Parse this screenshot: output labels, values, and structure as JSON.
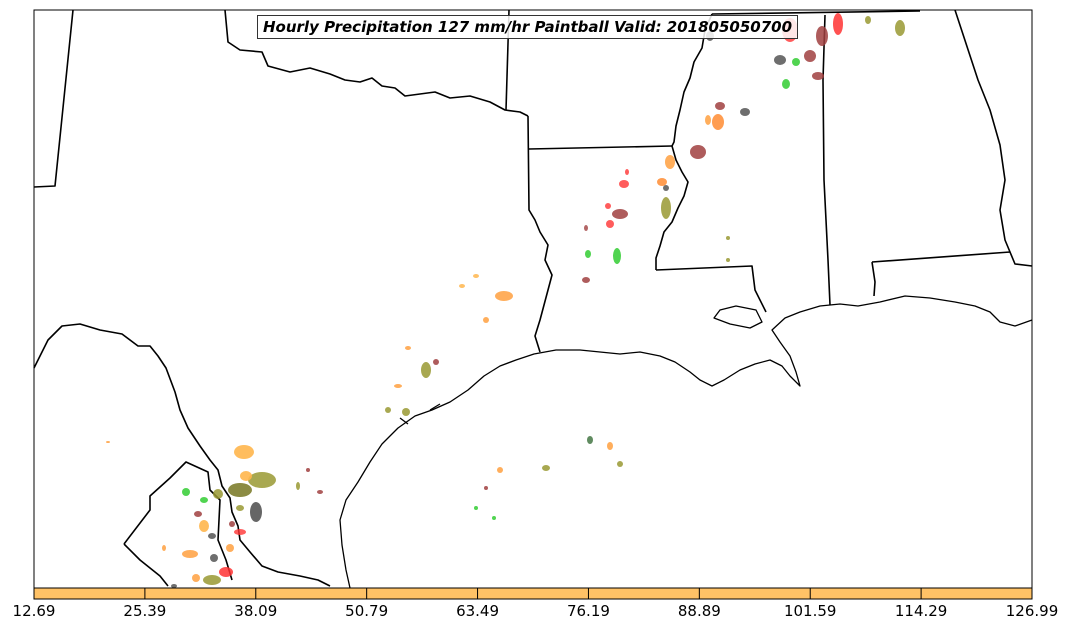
{
  "title": "Hourly Precipitation 127 mm/hr Paintball Valid: 201805050700",
  "colorbar": {
    "color": "#ffc266",
    "tick_labels": [
      "12.69",
      "25.39",
      "38.09",
      "50.79",
      "63.49",
      "76.19",
      "88.89",
      "101.59",
      "114.29",
      "126.99"
    ]
  },
  "colors": {
    "orange": "#ffa040",
    "light_orange": "#ffb64d",
    "red": "#ff3333",
    "dark_red": "#a04040",
    "green": "#33cc33",
    "olive": "#999933",
    "gray": "#555555",
    "outline": "#000000"
  }
}
